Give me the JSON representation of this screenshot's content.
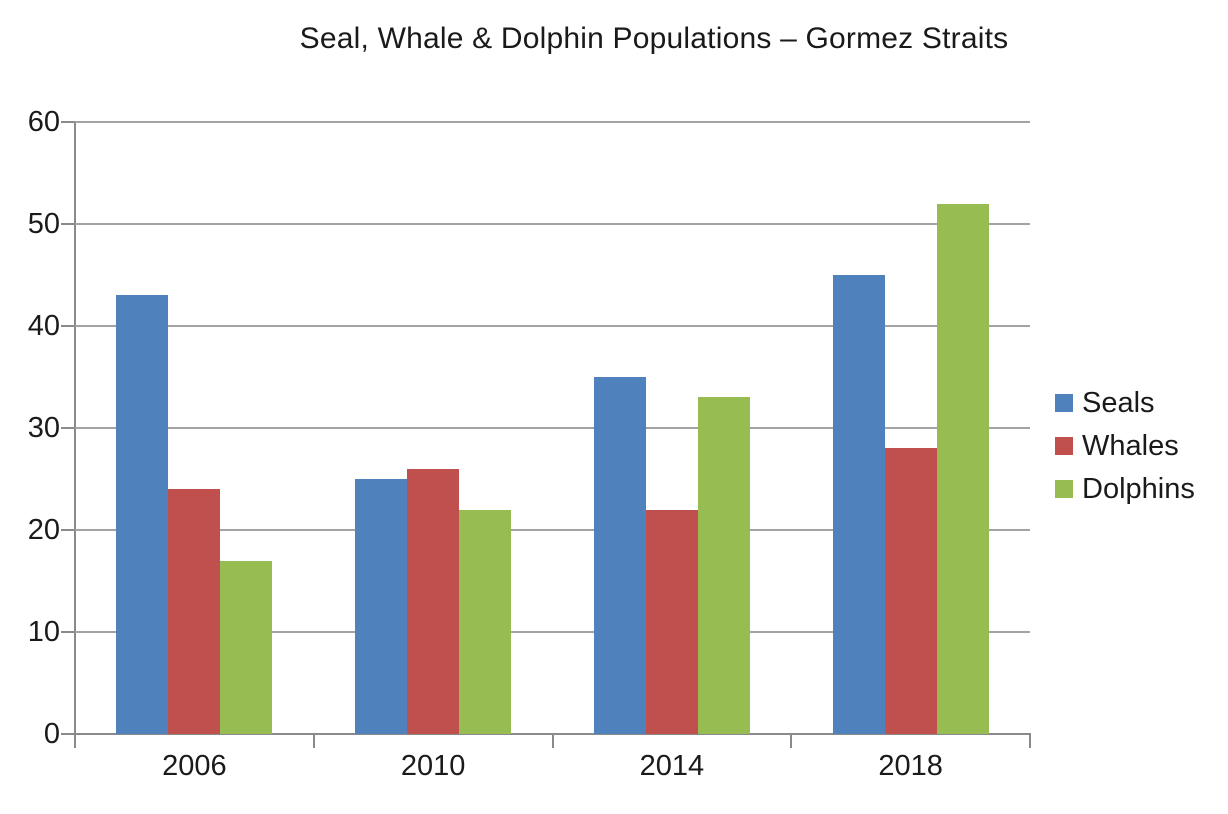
{
  "chart_data": {
    "type": "bar",
    "title": "Seal, Whale & Dolphin Populations – Gormez Straits",
    "categories": [
      "2006",
      "2010",
      "2014",
      "2018"
    ],
    "series": [
      {
        "name": "Seals",
        "color": "#4F81BD",
        "values": [
          43,
          25,
          35,
          45
        ]
      },
      {
        "name": "Whales",
        "color": "#C0504D",
        "values": [
          24,
          26,
          22,
          28
        ]
      },
      {
        "name": "Dolphins",
        "color": "#97BC52",
        "values": [
          17,
          22,
          33,
          52
        ]
      }
    ],
    "xlabel": "",
    "ylabel": "",
    "ylim": [
      0,
      60
    ],
    "yticks": [
      0,
      10,
      20,
      30,
      40,
      50,
      60
    ],
    "grid": true,
    "legend_position": "right",
    "colors": {
      "background": "#ffffff",
      "gridline": "#a3a3a3",
      "axis": "#8a8a8a",
      "text": "#1a1a1a"
    }
  }
}
